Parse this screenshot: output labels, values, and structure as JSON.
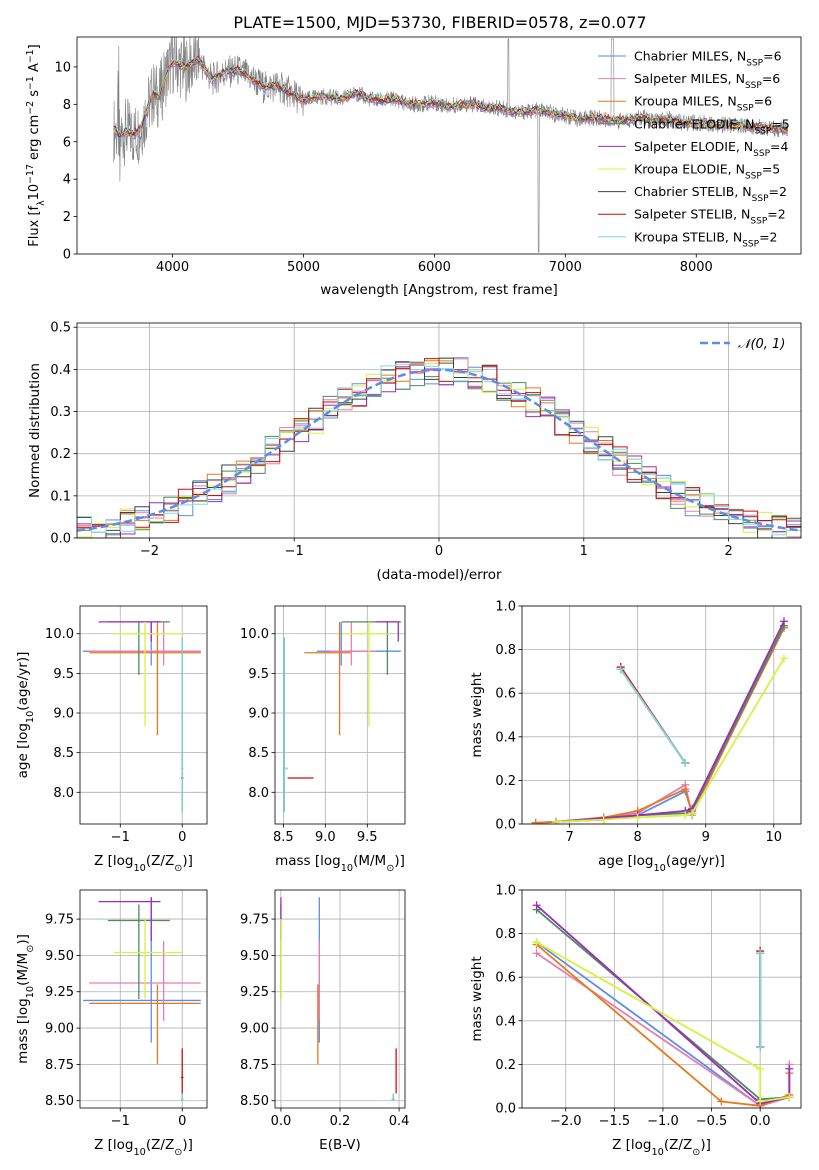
{
  "figure": {
    "title": "PLATE=1500, MJD=53730, FIBERID=0578, z=0.077"
  },
  "colors": {
    "Chabrier MILES": "#5b8ee8",
    "Salpeter MILES": "#e57fb0",
    "Kroupa MILES": "#e8781f",
    "Chabrier ELODIE": "#4f8a62",
    "Salpeter ELODIE": "#9b2fb8",
    "Kroupa ELODIE": "#d8f040",
    "Chabrier STELIB": "#404040",
    "Salpeter STELIB": "#cc0f0f",
    "Kroupa STELIB": "#7fdcdc",
    "data": "#808080",
    "gaussian": "#5b8ee8"
  },
  "chart_data": [
    {
      "id": "spectrum",
      "type": "line",
      "title": "PLATE=1500, MJD=53730, FIBERID=0578, z=0.077",
      "xlabel": "wavelength [Angstrom, rest frame]",
      "ylabel_text": "Flux [f",
      "ylabel_sub": "λ",
      "ylabel_mid": "10",
      "ylabel_sup": "−17",
      "ylabel_tail": " erg cm",
      "ylabel_sup2": "−2",
      "ylabel_tail2": " s",
      "ylabel_sup3": "−1",
      "ylabel_tail3": " A",
      "ylabel_sup4": "−1",
      "ylabel_end": "]",
      "xlim": [
        3270,
        8800
      ],
      "ylim": [
        0,
        11.6
      ],
      "xticks": [
        "4000",
        "5000",
        "6000",
        "7000",
        "8000"
      ],
      "xtick_values": [
        4000,
        5000,
        6000,
        7000,
        8000
      ],
      "yticks": [
        "0",
        "2",
        "4",
        "6",
        "8",
        "10"
      ],
      "ytick_values": [
        0,
        2,
        4,
        6,
        8,
        10
      ],
      "grid": false,
      "legend_position": "top-right",
      "legend": [
        {
          "name": "Chabrier MILES",
          "nssp": "6"
        },
        {
          "name": "Salpeter MILES",
          "nssp": "6"
        },
        {
          "name": "Kroupa MILES",
          "nssp": "6"
        },
        {
          "name": "Chabrier ELODIE",
          "nssp": "5"
        },
        {
          "name": "Salpeter ELODIE",
          "nssp": "4"
        },
        {
          "name": "Kroupa ELODIE",
          "nssp": "5"
        },
        {
          "name": "Chabrier STELIB",
          "nssp": "2"
        },
        {
          "name": "Salpeter STELIB",
          "nssp": "2"
        },
        {
          "name": "Kroupa STELIB",
          "nssp": "2"
        }
      ],
      "legend_prefix": ", N",
      "legend_sub": "SSP",
      "model_continuum": {
        "x": [
          3550,
          3600,
          3650,
          3700,
          3750,
          3800,
          3850,
          3900,
          3950,
          4000,
          4100,
          4200,
          4300,
          4400,
          4500,
          4600,
          4700,
          4800,
          4900,
          5000,
          5100,
          5200,
          5300,
          5400,
          5500,
          5600,
          5700,
          5800,
          5900,
          6000,
          6100,
          6200,
          6300,
          6400,
          6500,
          6600,
          6700,
          6800,
          6900,
          7000,
          7100,
          7200,
          7300,
          7400,
          7500,
          7600,
          7700,
          7800,
          7900,
          8000,
          8100,
          8200,
          8300,
          8400,
          8500,
          8600,
          8700
        ],
        "y": [
          6.7,
          6.3,
          6.6,
          6.4,
          6.6,
          7.6,
          8.6,
          8.4,
          9.6,
          10.3,
          9.9,
          10.4,
          9.3,
          9.7,
          9.8,
          9.4,
          8.9,
          9.0,
          8.6,
          8.2,
          8.4,
          8.4,
          8.3,
          8.6,
          8.3,
          8.2,
          8.3,
          8.0,
          8.0,
          8.1,
          7.9,
          8.0,
          8.0,
          7.8,
          7.8,
          7.6,
          7.6,
          7.7,
          7.5,
          7.4,
          7.2,
          7.3,
          7.2,
          7.1,
          7.2,
          7.3,
          7.1,
          7.2,
          7.0,
          7.0,
          7.0,
          6.9,
          6.9,
          6.8,
          6.8,
          6.7,
          6.6
        ]
      },
      "data_range": [
        3550,
        8700
      ]
    },
    {
      "id": "residuals",
      "type": "line",
      "xlabel": "(data-model)/error",
      "ylabel": "Normed distribution",
      "xlim": [
        -2.5,
        2.5
      ],
      "ylim": [
        0,
        0.51
      ],
      "xticks": [
        "−2",
        "−1",
        "0",
        "1",
        "2"
      ],
      "xtick_values": [
        -2,
        -1,
        0,
        1,
        2
      ],
      "yticks": [
        "0.0",
        "0.1",
        "0.2",
        "0.3",
        "0.4",
        "0.5"
      ],
      "ytick_values": [
        0,
        0.1,
        0.2,
        0.3,
        0.4,
        0.5
      ],
      "grid": true,
      "legend_label": "𝒩(0, 1)",
      "legend_position": "top-right",
      "bin_width": 0.1
    },
    {
      "id": "age-metallicity",
      "type": "scatter",
      "xlabel": "Z [log",
      "xlabel_sub": "10",
      "xlabel_tail": "(Z/Z",
      "xlabel_sub2": "⊙",
      "xlabel_end": ")]",
      "ylabel": "age  [log",
      "ylabel_sub": "10",
      "ylabel_tail": "(age/yr)]",
      "xlim": [
        -1.65,
        0.4
      ],
      "ylim": [
        7.6,
        10.35
      ],
      "xticks": [
        "−1",
        "0"
      ],
      "xtick_values": [
        -1,
        0
      ],
      "yticks": [
        "8.0",
        "8.5",
        "9.0",
        "9.5",
        "10.0"
      ],
      "ytick_values": [
        8.0,
        8.5,
        9.0,
        9.5,
        10.0
      ],
      "grid": true
    },
    {
      "id": "age-mass",
      "type": "scatter",
      "xlabel": "mass [log",
      "xlabel_sub": "10",
      "xlabel_tail": "(M/M",
      "xlabel_sub2": "⊙",
      "xlabel_end": ")]",
      "xlim": [
        8.4,
        9.95
      ],
      "ylim": [
        7.6,
        10.35
      ],
      "xticks": [
        "8.5",
        "9.0",
        "9.5"
      ],
      "xtick_values": [
        8.5,
        9.0,
        9.5
      ],
      "yticks": [
        "8.0",
        "8.5",
        "9.0",
        "9.5",
        "10.0"
      ],
      "ytick_values": [
        8.0,
        8.5,
        9.0,
        9.5,
        10.0
      ],
      "grid": true
    },
    {
      "id": "weight-age",
      "type": "line",
      "xlabel": "age  [log",
      "xlabel_sub": "10",
      "xlabel_tail": "(age/yr)]",
      "ylabel": "mass weight",
      "xlim": [
        6.3,
        10.4
      ],
      "ylim": [
        0,
        1.0
      ],
      "xticks": [
        "7",
        "8",
        "9",
        "10"
      ],
      "xtick_values": [
        7,
        8,
        9,
        10
      ],
      "yticks": [
        "0.0",
        "0.2",
        "0.4",
        "0.6",
        "0.8",
        "1.0"
      ],
      "ytick_values": [
        0,
        0.2,
        0.4,
        0.6,
        0.8,
        1.0
      ],
      "grid": true,
      "series": [
        {
          "model": "Chabrier MILES",
          "x": [
            6.5,
            6.8,
            7.5,
            8.0,
            8.7,
            8.8,
            10.15
          ],
          "y": [
            0.005,
            0.01,
            0.02,
            0.04,
            0.15,
            0.05,
            0.9
          ]
        },
        {
          "model": "Salpeter MILES",
          "x": [
            6.5,
            6.8,
            7.5,
            8.0,
            8.7,
            8.8,
            10.15
          ],
          "y": [
            0.005,
            0.01,
            0.03,
            0.05,
            0.18,
            0.04,
            0.91
          ]
        },
        {
          "model": "Kroupa MILES",
          "x": [
            6.5,
            6.8,
            7.5,
            8.0,
            8.7,
            8.8,
            10.15
          ],
          "y": [
            0.005,
            0.01,
            0.03,
            0.06,
            0.16,
            0.05,
            0.9
          ]
        },
        {
          "model": "Chabrier ELODIE",
          "x": [
            6.8,
            7.5,
            8.0,
            8.7,
            8.8,
            10.15
          ],
          "y": [
            0.01,
            0.02,
            0.04,
            0.05,
            0.06,
            0.91
          ]
        },
        {
          "model": "Salpeter ELODIE",
          "x": [
            6.8,
            8.0,
            8.7,
            8.8,
            10.15
          ],
          "y": [
            0.01,
            0.04,
            0.06,
            0.07,
            0.93
          ]
        },
        {
          "model": "Kroupa ELODIE",
          "x": [
            6.8,
            7.5,
            8.0,
            8.7,
            8.8,
            10.15
          ],
          "y": [
            0.01,
            0.02,
            0.03,
            0.04,
            0.05,
            0.76
          ]
        },
        {
          "model": "Chabrier STELIB",
          "x": [
            7.75,
            8.7
          ],
          "y": [
            0.71,
            0.28
          ]
        },
        {
          "model": "Salpeter STELIB",
          "x": [
            7.75,
            8.7
          ],
          "y": [
            0.72,
            0.28
          ]
        },
        {
          "model": "Kroupa STELIB",
          "x": [
            7.75,
            8.7
          ],
          "y": [
            0.71,
            0.28
          ]
        }
      ]
    },
    {
      "id": "mass-metallicity",
      "type": "scatter",
      "xlabel": "Z [log",
      "xlabel_sub": "10",
      "xlabel_tail": "(Z/Z",
      "xlabel_sub2": "⊙",
      "xlabel_end": ")]",
      "ylabel": "mass [log",
      "ylabel_sub": "10",
      "ylabel_tail": "(M/M",
      "ylabel_sub2": "⊙",
      "ylabel_end": ")]",
      "xlim": [
        -1.65,
        0.4
      ],
      "ylim": [
        8.45,
        9.95
      ],
      "xticks": [
        "−1",
        "0"
      ],
      "xtick_values": [
        -1,
        0
      ],
      "yticks": [
        "8.50",
        "8.75",
        "9.00",
        "9.25",
        "9.50",
        "9.75"
      ],
      "ytick_values": [
        8.5,
        8.75,
        9.0,
        9.25,
        9.5,
        9.75
      ],
      "grid": true
    },
    {
      "id": "mass-extinction",
      "type": "scatter",
      "xlabel": "E(B-V)",
      "xlim": [
        -0.02,
        0.42
      ],
      "ylim": [
        8.45,
        9.95
      ],
      "xticks": [
        "0.0",
        "0.2",
        "0.4"
      ],
      "xtick_values": [
        0,
        0.2,
        0.4
      ],
      "yticks": [
        "8.50",
        "8.75",
        "9.00",
        "9.25",
        "9.50",
        "9.75"
      ],
      "ytick_values": [
        8.5,
        8.75,
        9.0,
        9.25,
        9.5,
        9.75
      ],
      "grid": true
    },
    {
      "id": "weight-metallicity",
      "type": "line",
      "xlabel": "Z [log",
      "xlabel_sub": "10",
      "xlabel_tail": "(Z/Z",
      "xlabel_sub2": "⊙",
      "xlabel_end": ")]",
      "ylabel": "mass weight",
      "xlim": [
        -2.45,
        0.42
      ],
      "ylim": [
        0,
        1.0
      ],
      "xticks": [
        "−2.0",
        "−1.5",
        "−1.0",
        "−0.5",
        "0.0"
      ],
      "xtick_values": [
        -2.0,
        -1.5,
        -1.0,
        -0.5,
        0.0
      ],
      "yticks": [
        "0.0",
        "0.2",
        "0.4",
        "0.6",
        "0.8",
        "1.0"
      ],
      "ytick_values": [
        0,
        0.2,
        0.4,
        0.6,
        0.8,
        1.0
      ],
      "grid": true,
      "series": [
        {
          "model": "Chabrier MILES",
          "x": [
            -2.3,
            0.0,
            0.3
          ],
          "y": [
            0.76,
            0.01,
            0.05
          ]
        },
        {
          "model": "Salpeter MILES",
          "x": [
            -2.3,
            0.0,
            0.3,
            0.3
          ],
          "y": [
            0.71,
            0.01,
            0.05,
            0.2
          ]
        },
        {
          "model": "Kroupa MILES",
          "x": [
            -2.3,
            -0.4,
            0.0,
            0.3,
            0.3
          ],
          "y": [
            0.75,
            0.03,
            0.01,
            0.06,
            0.16
          ]
        },
        {
          "model": "Chabrier ELODIE",
          "x": [
            -2.3,
            0.0,
            0.3
          ],
          "y": [
            0.91,
            0.04,
            0.05
          ]
        },
        {
          "model": "Salpeter ELODIE",
          "x": [
            -2.3,
            0.0,
            0.3,
            0.3
          ],
          "y": [
            0.93,
            0.02,
            0.05,
            0.18
          ]
        },
        {
          "model": "Kroupa ELODIE",
          "x": [
            -2.3,
            0.0,
            0.0,
            0.3
          ],
          "y": [
            0.76,
            0.18,
            0.03,
            0.05
          ]
        },
        {
          "model": "Chabrier STELIB",
          "x": [
            0.0,
            0.0
          ],
          "y": [
            0.71,
            0.28
          ]
        },
        {
          "model": "Salpeter STELIB",
          "x": [
            0.0,
            0.0
          ],
          "y": [
            0.72,
            0.28
          ]
        },
        {
          "model": "Kroupa STELIB",
          "x": [
            0.0,
            0.0
          ],
          "y": [
            0.71,
            0.28
          ]
        }
      ]
    }
  ],
  "error_points": {
    "models": [
      "Chabrier MILES",
      "Salpeter MILES",
      "Kroupa MILES",
      "Chabrier ELODIE",
      "Salpeter ELODIE",
      "Kroupa ELODIE",
      "Chabrier STELIB",
      "Salpeter STELIB",
      "Kroupa STELIB"
    ],
    "Z": [
      -0.5,
      -0.3,
      -0.4,
      -0.7,
      -0.5,
      -0.6,
      0.0,
      0.0,
      0.0
    ],
    "Z_lo": [
      -1.6,
      -1.5,
      -1.5,
      -1.2,
      -1.35,
      -1.1,
      -0.02,
      -0.02,
      -0.02
    ],
    "Z_hi": [
      0.3,
      0.3,
      0.3,
      -0.2,
      -0.35,
      0.0,
      0.02,
      0.02,
      0.02
    ],
    "age": [
      9.78,
      9.78,
      9.76,
      10.15,
      10.15,
      10.0,
      8.3,
      8.18,
      8.3
    ],
    "age_lo": [
      9.6,
      9.6,
      8.72,
      9.48,
      9.9,
      8.83,
      7.75,
      8.18,
      7.75
    ],
    "age_hi": [
      10.15,
      10.15,
      10.15,
      10.15,
      10.15,
      10.15,
      9.95,
      8.18,
      9.95
    ],
    "mass": [
      9.19,
      9.31,
      9.17,
      9.74,
      9.87,
      9.52,
      8.51,
      8.66,
      8.51
    ],
    "mass_lo": [
      8.9,
      9.05,
      8.75,
      9.2,
      9.6,
      9.2,
      8.5,
      8.55,
      8.5
    ],
    "mass_hi": [
      9.9,
      9.6,
      9.3,
      9.85,
      9.9,
      9.75,
      8.55,
      8.86,
      8.55
    ],
    "ebv": [
      0.13,
      0.13,
      0.125,
      0.0,
      0.0,
      0.0,
      0.38,
      0.39,
      0.38
    ],
    "ebv_lo": [
      0.13,
      0.13,
      0.125,
      0.0,
      0.0,
      0.0,
      0.375,
      0.39,
      0.375
    ],
    "ebv_hi": [
      0.13,
      0.13,
      0.125,
      0.0,
      0.0,
      0.0,
      0.385,
      0.39,
      0.385
    ]
  }
}
